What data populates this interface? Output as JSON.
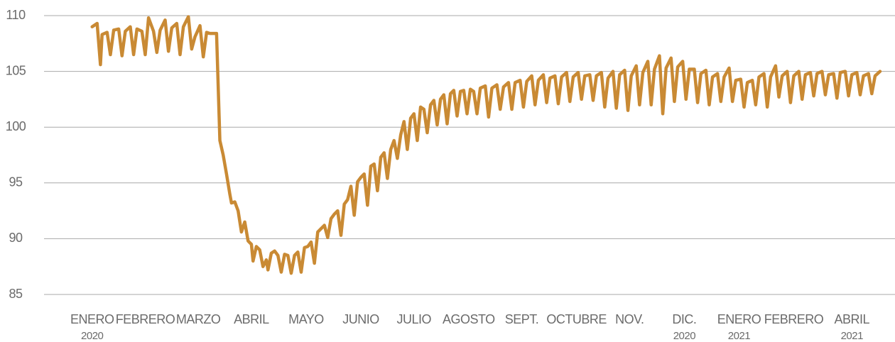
{
  "chart_data": {
    "type": "line",
    "x": [
      0,
      3,
      5,
      6,
      9,
      11,
      13,
      16,
      18,
      20,
      23,
      25,
      27,
      30,
      32,
      34,
      37,
      39,
      41,
      44,
      46,
      48,
      51,
      53,
      55,
      58,
      60,
      62,
      65,
      67,
      69,
      71,
      75,
      77,
      79,
      81,
      83,
      84,
      86,
      88,
      90,
      92,
      94,
      96,
      97,
      99,
      101,
      103,
      105,
      106,
      108,
      110,
      112,
      114,
      116,
      118,
      120,
      122,
      124,
      126,
      128,
      130,
      132,
      134,
      136,
      138,
      140,
      142,
      144,
      146,
      148,
      150,
      152,
      154,
      156,
      158,
      160,
      162,
      164,
      166,
      168,
      170,
      172,
      174,
      176,
      178,
      180,
      182,
      184,
      186,
      188,
      190,
      192,
      194,
      196,
      198,
      200,
      202,
      204,
      206,
      208,
      210,
      212,
      214,
      216,
      218,
      220,
      222,
      224,
      226,
      228,
      230,
      232,
      234,
      237,
      239,
      241,
      244,
      246,
      248,
      251,
      253,
      255,
      258,
      260,
      262,
      265,
      267,
      269,
      272,
      274,
      276,
      279,
      281,
      283,
      286,
      288,
      290,
      293,
      295,
      297,
      300,
      302,
      304,
      307,
      309,
      311,
      314,
      316,
      318,
      321,
      323,
      325,
      328,
      330,
      332,
      335,
      337,
      339,
      342,
      344,
      346,
      349,
      351,
      353,
      356,
      358,
      360,
      363,
      365,
      367,
      370,
      372,
      374,
      377,
      379,
      381,
      384,
      386,
      388,
      391,
      393,
      395,
      398,
      400,
      402,
      405,
      407,
      409,
      412,
      414,
      416,
      419,
      421,
      423,
      426,
      428,
      430,
      433,
      435,
      437,
      440,
      442,
      444,
      447,
      449,
      451,
      454,
      456,
      458,
      461,
      463,
      465,
      468,
      470,
      472,
      475
    ],
    "series": [
      {
        "color": "#c98a34",
        "values": [
          109,
          109.3,
          105.6,
          108.3,
          108.5,
          106.5,
          108.7,
          108.8,
          106.4,
          108.6,
          109,
          106.5,
          108.8,
          108.6,
          106.5,
          109.8,
          108.6,
          106.7,
          108.7,
          109.6,
          106.8,
          108.9,
          109.3,
          106.5,
          109,
          109.9,
          107,
          108.1,
          109.1,
          106.3,
          108.5,
          108.4,
          108.4,
          98.8,
          97.5,
          95.8,
          94,
          93.2,
          93.3,
          92.5,
          90.6,
          91.5,
          89.8,
          89.5,
          88,
          89.3,
          89,
          87.5,
          88.1,
          87.2,
          88.7,
          88.9,
          88.5,
          87,
          88.6,
          88.5,
          86.9,
          88.5,
          88.8,
          87,
          89.2,
          89.3,
          89.7,
          87.8,
          90.6,
          90.9,
          91.2,
          90.1,
          91.8,
          92.2,
          92.5,
          90.3,
          93.1,
          93.5,
          94.7,
          92.1,
          95.1,
          95.5,
          95.8,
          93,
          96.5,
          96.7,
          94.3,
          97.3,
          97.7,
          95.4,
          98,
          98.8,
          97.2,
          99.3,
          100.5,
          98,
          100.8,
          101.2,
          98.8,
          101.8,
          101.6,
          99.5,
          102,
          102.4,
          100.2,
          102.5,
          102.9,
          100.3,
          103,
          103.3,
          101,
          103.2,
          103.3,
          101.2,
          103.4,
          103.2,
          101.2,
          103.5,
          103.7,
          100.9,
          103.5,
          103.8,
          101.6,
          103.6,
          104,
          101.6,
          104,
          104.2,
          101.8,
          104.1,
          104.6,
          102,
          104.2,
          104.7,
          102.2,
          104.4,
          104.6,
          102.1,
          104.5,
          104.9,
          102.3,
          104.5,
          104.9,
          102.5,
          104.6,
          104.7,
          102.4,
          104.6,
          104.9,
          101.8,
          104.4,
          105,
          101.7,
          104.7,
          105.1,
          101.5,
          104.6,
          105.5,
          102,
          104.9,
          105.9,
          102,
          105.2,
          106.4,
          101.2,
          105.3,
          106.2,
          102.3,
          105.4,
          105.9,
          102.5,
          105.2,
          105.2,
          102.2,
          104.8,
          105.1,
          102,
          104.5,
          104.8,
          102.3,
          104.5,
          105.3,
          102.3,
          104.2,
          104.3,
          101.8,
          104,
          104.2,
          102,
          104.5,
          104.8,
          101.8,
          104.5,
          105.5,
          102.7,
          104.6,
          105,
          102.2,
          104.6,
          105,
          102.5,
          104.7,
          104.9,
          102.8,
          104.8,
          105,
          102.9,
          104.7,
          104.8,
          102.6,
          104.9,
          105,
          102.8,
          104.7,
          104.9,
          102.9,
          104.6,
          104.8,
          103,
          104.6,
          105
        ]
      }
    ],
    "xlim": [
      -29,
      484
    ],
    "xticks": [
      {
        "value": 0,
        "label": "ENERO",
        "sublabel": "2020"
      },
      {
        "value": 32,
        "label": "FEBRERO"
      },
      {
        "value": 64,
        "label": "MARZO"
      },
      {
        "value": 96,
        "label": "ABRIL"
      },
      {
        "value": 129,
        "label": "MAYO"
      },
      {
        "value": 162,
        "label": "JUNIO"
      },
      {
        "value": 194,
        "label": "JULIO"
      },
      {
        "value": 227,
        "label": "AGOSTO"
      },
      {
        "value": 259,
        "label": "SEPT."
      },
      {
        "value": 292,
        "label": "OCTUBRE"
      },
      {
        "value": 324,
        "label": "NOV."
      },
      {
        "value": 357,
        "label": "DIC.",
        "sublabel": "2020"
      },
      {
        "value": 390,
        "label": "ENERO",
        "sublabel": "2021"
      },
      {
        "value": 423,
        "label": "FEBRERO"
      },
      {
        "value": 458,
        "label": "ABRIL",
        "sublabel": "2021"
      }
    ],
    "ylim": [
      85,
      110
    ],
    "yticks": [
      85,
      90,
      95,
      100,
      105,
      110
    ],
    "grid": true
  }
}
